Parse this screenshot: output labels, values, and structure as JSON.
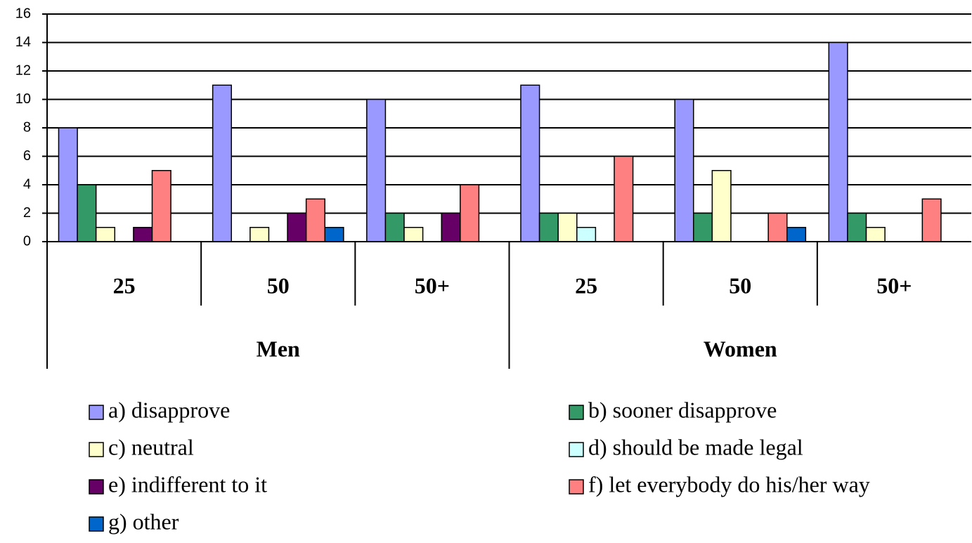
{
  "chart_data": {
    "type": "bar",
    "categories": [
      "25",
      "50",
      "50+",
      "25",
      "50",
      "50+"
    ],
    "groups": [
      {
        "label": "Men",
        "count": 3
      },
      {
        "label": "Women",
        "count": 3
      }
    ],
    "series": [
      {
        "name": "a) disapprove",
        "color": "#9999ff",
        "values": [
          8,
          11,
          10,
          11,
          10,
          14
        ]
      },
      {
        "name": "b) sooner disapprove",
        "color": "#339966",
        "values": [
          4,
          0,
          2,
          2,
          2,
          2
        ]
      },
      {
        "name": "c) neutral",
        "color": "#ffffcc",
        "values": [
          1,
          1,
          1,
          2,
          5,
          1
        ]
      },
      {
        "name": "d) should be made legal",
        "color": "#ccffff",
        "values": [
          0,
          0,
          0,
          1,
          0,
          0
        ]
      },
      {
        "name": "e) indifferent to it",
        "color": "#660066",
        "values": [
          1,
          2,
          2,
          0,
          0,
          0
        ]
      },
      {
        "name": "f) let everybody do his/her way",
        "color": "#ff8080",
        "values": [
          5,
          3,
          4,
          6,
          2,
          3
        ]
      },
      {
        "name": "g) other",
        "color": "#0066cc",
        "values": [
          0,
          1,
          0,
          0,
          1,
          0
        ]
      }
    ],
    "ylim": [
      0,
      16
    ],
    "yticks": [
      0,
      2,
      4,
      6,
      8,
      10,
      12,
      14,
      16
    ],
    "grid": true
  }
}
